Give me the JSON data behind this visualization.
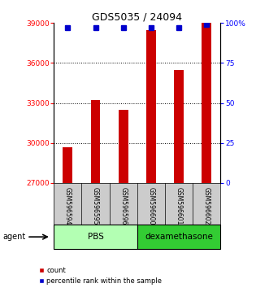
{
  "title": "GDS5035 / 24094",
  "samples": [
    "GSM596594",
    "GSM596595",
    "GSM596596",
    "GSM596600",
    "GSM596601",
    "GSM596602"
  ],
  "counts": [
    29700,
    33200,
    32500,
    38500,
    35500,
    39000
  ],
  "percentiles": [
    97,
    97,
    97,
    97,
    97,
    99
  ],
  "groups": [
    "PBS",
    "PBS",
    "PBS",
    "dexamethasone",
    "dexamethasone",
    "dexamethasone"
  ],
  "pbs_color": "#b3ffb3",
  "dexa_color": "#33cc33",
  "ylim_left": [
    27000,
    39000
  ],
  "ylim_right": [
    0,
    100
  ],
  "yticks_left": [
    27000,
    30000,
    33000,
    36000,
    39000
  ],
  "yticks_right": [
    0,
    25,
    50,
    75,
    100
  ],
  "grid_lines": [
    30000,
    33000,
    36000
  ],
  "bar_color": "#cc0000",
  "dot_color": "#0000cc",
  "bar_width": 0.35,
  "legend_count_label": "count",
  "legend_percentile_label": "percentile rank within the sample",
  "agent_label": "agent",
  "pbs_label": "PBS",
  "dexa_label": "dexamethasone",
  "right_ytick_labels": [
    "0",
    "25",
    "50",
    "75",
    "100%"
  ],
  "sample_box_color": "#cccccc",
  "sample_text_fontsize": 5.5,
  "group_text_fontsize": 7.5,
  "title_fontsize": 9,
  "axis_tick_fontsize": 6.5,
  "legend_fontsize": 6
}
